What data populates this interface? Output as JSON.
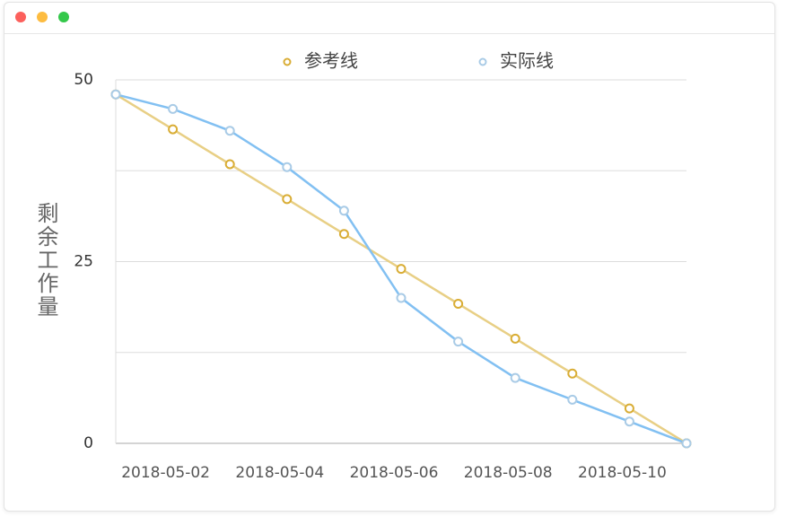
{
  "chart_data": {
    "type": "line",
    "y_label": "剩余工作量",
    "categories": [
      null,
      "2018-05-02",
      null,
      "2018-05-04",
      null,
      "2018-05-06",
      null,
      "2018-05-08",
      null,
      "2018-05-10",
      null
    ],
    "series": [
      {
        "name": "参考线",
        "color": "#e8cf85",
        "marker_color": "#d9ad35",
        "values": [
          48,
          43.2,
          38.4,
          33.6,
          28.8,
          24,
          19.2,
          14.4,
          9.6,
          4.8,
          0
        ]
      },
      {
        "name": "实际线",
        "color": "#82c0f2",
        "marker_color": "#a9cbe6",
        "values": [
          48,
          46,
          43,
          38,
          32,
          20,
          14,
          9,
          6,
          3,
          0
        ]
      }
    ],
    "ylim": [
      0,
      50
    ],
    "yticks": [
      0,
      25,
      50
    ],
    "minor_yticks": [
      12.5,
      37.5
    ],
    "grid": true,
    "legend": "top"
  }
}
